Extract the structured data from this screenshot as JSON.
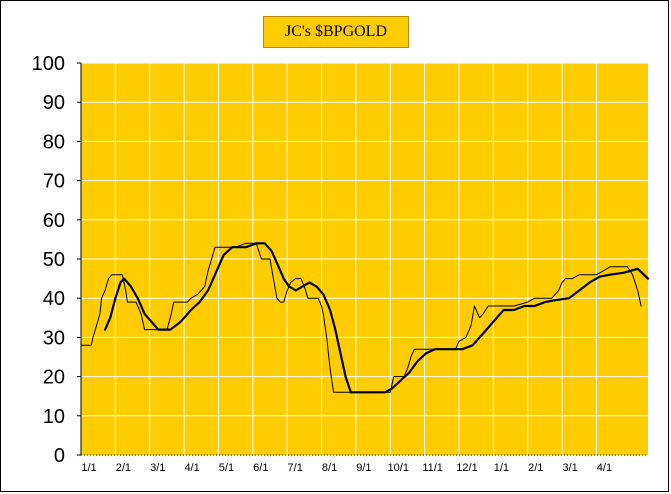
{
  "chart_data": {
    "type": "line",
    "title": "JC's $BPGOLD",
    "xlabel": "",
    "ylabel": "",
    "ylim": [
      0,
      100
    ],
    "yticks": [
      "0",
      "10",
      "20",
      "30",
      "40",
      "50",
      "60",
      "70",
      "80",
      "90",
      "100"
    ],
    "xticks": [
      "1/1",
      "2/1",
      "3/1",
      "4/1",
      "5/1",
      "6/1",
      "7/1",
      "8/1",
      "9/1",
      "10/1",
      "11/1",
      "12/1",
      "1/1",
      "2/1",
      "3/1",
      "4/1"
    ],
    "xlim": [
      0,
      16.5
    ],
    "grid": true,
    "plot_bg": "#ffcc00",
    "grid_color": "#ffffff",
    "series": [
      {
        "line_color": "#000000",
        "line_style": "thin-step",
        "points": [
          [
            0.0,
            28
          ],
          [
            0.3,
            28
          ],
          [
            0.35,
            30
          ],
          [
            0.45,
            33
          ],
          [
            0.55,
            36
          ],
          [
            0.6,
            40
          ],
          [
            0.7,
            42
          ],
          [
            0.8,
            45
          ],
          [
            0.9,
            46
          ],
          [
            1.2,
            46
          ],
          [
            1.3,
            42
          ],
          [
            1.35,
            39
          ],
          [
            1.6,
            39
          ],
          [
            1.75,
            36
          ],
          [
            1.85,
            32
          ],
          [
            2.5,
            32
          ],
          [
            2.6,
            35
          ],
          [
            2.7,
            39
          ],
          [
            3.1,
            39
          ],
          [
            3.2,
            40
          ],
          [
            3.4,
            41
          ],
          [
            3.6,
            43
          ],
          [
            3.7,
            47
          ],
          [
            3.8,
            50
          ],
          [
            3.9,
            53
          ],
          [
            4.5,
            53
          ],
          [
            4.8,
            54
          ],
          [
            5.1,
            54
          ],
          [
            5.25,
            50
          ],
          [
            5.5,
            50
          ],
          [
            5.6,
            45
          ],
          [
            5.7,
            40
          ],
          [
            5.8,
            39
          ],
          [
            5.9,
            39
          ],
          [
            6.0,
            42
          ],
          [
            6.1,
            44
          ],
          [
            6.25,
            45
          ],
          [
            6.4,
            45
          ],
          [
            6.5,
            43
          ],
          [
            6.6,
            40
          ],
          [
            6.9,
            40
          ],
          [
            7.0,
            38
          ],
          [
            7.05,
            36
          ],
          [
            7.15,
            30
          ],
          [
            7.25,
            22
          ],
          [
            7.35,
            16
          ],
          [
            9.0,
            16
          ],
          [
            9.1,
            20
          ],
          [
            9.4,
            20
          ],
          [
            9.5,
            22
          ],
          [
            9.6,
            25
          ],
          [
            9.7,
            27
          ],
          [
            9.8,
            27
          ],
          [
            10.0,
            27
          ],
          [
            10.2,
            27
          ],
          [
            10.9,
            27
          ],
          [
            11.0,
            29
          ],
          [
            11.2,
            30
          ],
          [
            11.35,
            33
          ],
          [
            11.45,
            38
          ],
          [
            11.6,
            35
          ],
          [
            11.7,
            36
          ],
          [
            11.85,
            38
          ],
          [
            12.6,
            38
          ],
          [
            13.0,
            39
          ],
          [
            13.2,
            40
          ],
          [
            13.7,
            40
          ],
          [
            13.9,
            42
          ],
          [
            14.0,
            44
          ],
          [
            14.1,
            45
          ],
          [
            14.3,
            45
          ],
          [
            14.5,
            46
          ],
          [
            14.7,
            46
          ],
          [
            15.0,
            46
          ],
          [
            15.2,
            47
          ],
          [
            15.4,
            48
          ],
          [
            15.9,
            48
          ],
          [
            16.05,
            46
          ],
          [
            16.2,
            42
          ],
          [
            16.3,
            38
          ]
        ]
      },
      {
        "line_color": "#000000",
        "line_style": "thick-smooth",
        "points": [
          [
            0.7,
            32
          ],
          [
            0.85,
            35
          ],
          [
            1.0,
            40
          ],
          [
            1.15,
            44
          ],
          [
            1.25,
            45
          ],
          [
            1.45,
            43
          ],
          [
            1.65,
            40
          ],
          [
            1.85,
            36
          ],
          [
            2.05,
            34
          ],
          [
            2.25,
            32
          ],
          [
            2.6,
            32
          ],
          [
            2.9,
            34
          ],
          [
            3.2,
            37
          ],
          [
            3.45,
            39
          ],
          [
            3.7,
            42
          ],
          [
            3.9,
            46
          ],
          [
            4.15,
            51
          ],
          [
            4.4,
            53
          ],
          [
            4.8,
            53
          ],
          [
            5.1,
            54
          ],
          [
            5.35,
            54
          ],
          [
            5.55,
            52
          ],
          [
            5.75,
            48
          ],
          [
            5.9,
            45
          ],
          [
            6.05,
            43
          ],
          [
            6.25,
            42
          ],
          [
            6.45,
            43
          ],
          [
            6.65,
            44
          ],
          [
            6.85,
            43
          ],
          [
            7.05,
            41
          ],
          [
            7.25,
            37
          ],
          [
            7.4,
            32
          ],
          [
            7.55,
            26
          ],
          [
            7.7,
            20
          ],
          [
            7.85,
            16
          ],
          [
            8.85,
            16
          ],
          [
            9.05,
            17
          ],
          [
            9.3,
            19
          ],
          [
            9.55,
            21
          ],
          [
            9.8,
            24
          ],
          [
            10.05,
            26
          ],
          [
            10.3,
            27
          ],
          [
            11.1,
            27
          ],
          [
            11.4,
            28
          ],
          [
            11.7,
            31
          ],
          [
            12.0,
            34
          ],
          [
            12.3,
            37
          ],
          [
            12.6,
            37
          ],
          [
            12.9,
            38
          ],
          [
            13.2,
            38
          ],
          [
            13.5,
            39
          ],
          [
            13.8,
            39.5
          ],
          [
            14.2,
            40
          ],
          [
            14.5,
            42
          ],
          [
            14.8,
            44
          ],
          [
            15.1,
            45.5
          ],
          [
            15.4,
            46
          ],
          [
            15.8,
            46.5
          ],
          [
            16.2,
            47.5
          ],
          [
            16.5,
            45
          ]
        ]
      }
    ]
  }
}
